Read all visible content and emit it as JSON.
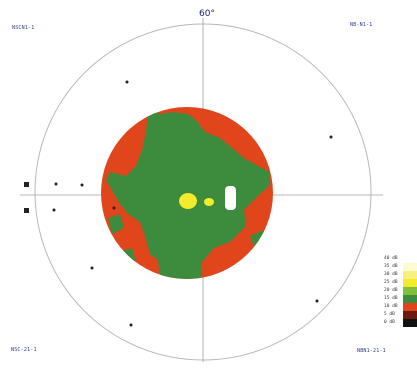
{
  "top_label": "60°",
  "corners": {
    "top_left": "NSCN1-1",
    "top_right": "NB-N1-1",
    "bottom_left": "NSC-21-1",
    "bottom_right": "NBN1-21-1"
  },
  "colors": {
    "ring": "#b8b8b8",
    "axis": "#a0a0a0",
    "orange": "#e0451b",
    "green": "#3d8b3d",
    "yellow": "#f2ec2c",
    "white_patch": "#ffffff",
    "dot": "#222222"
  },
  "legend": {
    "items": [
      {
        "label": "40 dB",
        "color": "#ffffff"
      },
      {
        "label": "35 dB",
        "color": "#fffbd0"
      },
      {
        "label": "30 dB",
        "color": "#f8f080"
      },
      {
        "label": "25 dB",
        "color": "#f2ec2c"
      },
      {
        "label": "20 dB",
        "color": "#7fbf3a"
      },
      {
        "label": "15 dB",
        "color": "#3d8b3d"
      },
      {
        "label": "10 dB",
        "color": "#e0451b"
      },
      {
        "label": "5 dB",
        "color": "#6a1a10"
      },
      {
        "label": "0 dB",
        "color": "#111111"
      }
    ]
  }
}
